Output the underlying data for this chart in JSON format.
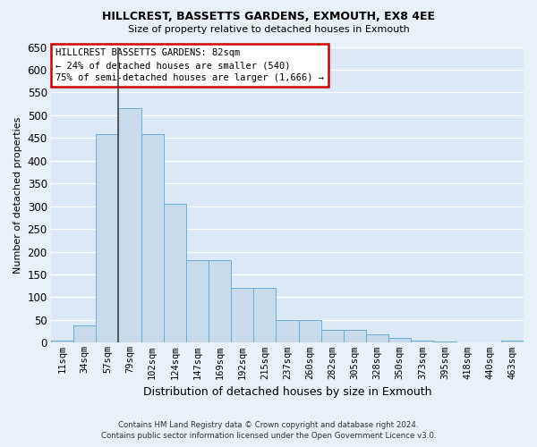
{
  "title1": "HILLCREST, BASSETTS GARDENS, EXMOUTH, EX8 4EE",
  "title2": "Size of property relative to detached houses in Exmouth",
  "xlabel": "Distribution of detached houses by size in Exmouth",
  "ylabel": "Number of detached properties",
  "categories": [
    "11sqm",
    "34sqm",
    "57sqm",
    "79sqm",
    "102sqm",
    "124sqm",
    "147sqm",
    "169sqm",
    "192sqm",
    "215sqm",
    "237sqm",
    "260sqm",
    "282sqm",
    "305sqm",
    "328sqm",
    "350sqm",
    "373sqm",
    "395sqm",
    "418sqm",
    "440sqm",
    "463sqm"
  ],
  "values": [
    5,
    38,
    458,
    515,
    458,
    306,
    182,
    182,
    120,
    120,
    50,
    50,
    28,
    28,
    18,
    10,
    5,
    2,
    0,
    1,
    5
  ],
  "bar_color": "#c9daea",
  "bar_edge_color": "#6aaed6",
  "property_bar_index": 3,
  "annotation_title": "HILLCREST BASSETTS GARDENS: 82sqm",
  "annotation_line1": "← 24% of detached houses are smaller (540)",
  "annotation_line2": "75% of semi-detached houses are larger (1,666) →",
  "annotation_box_color": "#ffffff",
  "annotation_border_color": "#cc0000",
  "vline_color": "#444444",
  "ylim": [
    0,
    650
  ],
  "yticks": [
    0,
    50,
    100,
    150,
    200,
    250,
    300,
    350,
    400,
    450,
    500,
    550,
    600,
    650
  ],
  "background_color": "#dce8f5",
  "grid_color": "#ffffff",
  "fig_background": "#e8f0f8",
  "footer1": "Contains HM Land Registry data © Crown copyright and database right 2024.",
  "footer2": "Contains public sector information licensed under the Open Government Licence v3.0."
}
